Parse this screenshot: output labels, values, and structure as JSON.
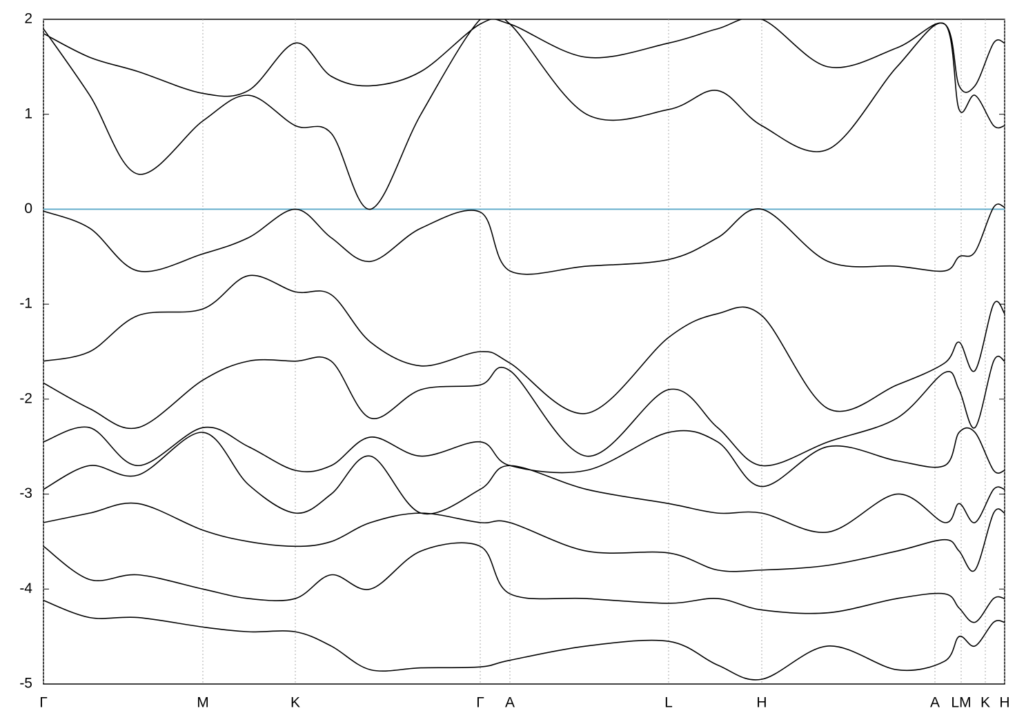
{
  "chart_data": {
    "type": "line",
    "x": [
      0,
      67,
      137,
      231,
      297,
      365,
      417,
      474,
      547,
      633,
      676,
      787,
      906,
      977,
      1041,
      1137,
      1237,
      1306,
      1327,
      1350,
      1377,
      1393
    ],
    "xlim": [
      0,
      1393
    ],
    "xticks": [
      {
        "value": 0,
        "label": "Γ"
      },
      {
        "value": 231,
        "label": "M"
      },
      {
        "value": 365,
        "label": "K"
      },
      {
        "value": 633,
        "label": "Γ"
      },
      {
        "value": 676,
        "label": "A"
      },
      {
        "value": 906,
        "label": "L"
      },
      {
        "value": 1041,
        "label": "H"
      },
      {
        "value": 1292,
        "label": "A"
      },
      {
        "value": 1330,
        "label": "LM"
      },
      {
        "value": 1365,
        "label": "K"
      },
      {
        "value": 1393,
        "label": "H"
      }
    ],
    "ylim": [
      -5,
      2
    ],
    "yticks": [
      -5,
      -4,
      -3,
      -2,
      -1,
      0,
      1,
      2
    ],
    "grid": true,
    "fermi_level": {
      "value": 0,
      "color": "#5aa8c8"
    },
    "series": [
      {
        "color": "#000000",
        "values": [
          1.9,
          1.2,
          0.37,
          0.93,
          1.2,
          0.88,
          0.8,
          0.0,
          1.0,
          2.0,
          1.95,
          1.0,
          1.05,
          1.25,
          0.88,
          0.63,
          1.5,
          1.95,
          1.05,
          1.2,
          0.88,
          0.88
        ]
      },
      {
        "color": "#000000",
        "values": [
          1.85,
          1.6,
          1.45,
          1.22,
          1.25,
          1.75,
          1.4,
          1.3,
          1.45,
          1.95,
          1.95,
          1.6,
          1.75,
          1.9,
          2.0,
          1.5,
          1.7,
          1.95,
          1.3,
          1.3,
          1.75,
          1.75
        ]
      },
      {
        "color": "#000000",
        "values": [
          -0.02,
          -0.2,
          -0.65,
          -0.47,
          -0.3,
          0.0,
          -0.3,
          -0.55,
          -0.2,
          -0.03,
          -0.65,
          -0.6,
          -0.53,
          -0.3,
          0.0,
          -0.55,
          -0.6,
          -0.65,
          -0.5,
          -0.45,
          0.02,
          0.02
        ]
      },
      {
        "color": "#000000",
        "values": [
          -1.6,
          -1.5,
          -1.12,
          -1.05,
          -0.7,
          -0.87,
          -0.9,
          -1.4,
          -1.65,
          -1.5,
          -1.62,
          -2.15,
          -1.35,
          -1.1,
          -1.12,
          -2.1,
          -1.85,
          -1.62,
          -1.4,
          -1.7,
          -1.0,
          -1.1
        ]
      },
      {
        "color": "#000000",
        "values": [
          -1.83,
          -2.1,
          -2.3,
          -1.8,
          -1.6,
          -1.6,
          -1.6,
          -2.2,
          -1.9,
          -1.85,
          -1.7,
          -2.6,
          -1.9,
          -2.3,
          -2.7,
          -2.45,
          -2.2,
          -1.72,
          -1.9,
          -2.3,
          -1.6,
          -1.6
        ]
      },
      {
        "color": "#000000",
        "values": [
          -2.45,
          -2.3,
          -2.7,
          -2.3,
          -2.5,
          -2.75,
          -2.7,
          -2.4,
          -2.6,
          -2.45,
          -2.7,
          -2.75,
          -2.35,
          -2.45,
          -2.92,
          -2.5,
          -2.65,
          -2.7,
          -2.35,
          -2.35,
          -2.75,
          -2.75
        ]
      },
      {
        "color": "#000000",
        "values": [
          -2.95,
          -2.7,
          -2.8,
          -2.35,
          -2.9,
          -3.2,
          -3.0,
          -2.6,
          -3.2,
          -2.95,
          -2.7,
          -2.95,
          -3.1,
          -3.2,
          -3.2,
          -3.4,
          -3.0,
          -3.3,
          -3.1,
          -3.3,
          -2.95,
          -2.95
        ]
      },
      {
        "color": "#000000",
        "values": [
          -3.3,
          -3.2,
          -3.1,
          -3.38,
          -3.5,
          -3.55,
          -3.5,
          -3.3,
          -3.2,
          -3.3,
          -3.3,
          -3.6,
          -3.62,
          -3.8,
          -3.8,
          -3.75,
          -3.6,
          -3.48,
          -3.6,
          -3.8,
          -3.2,
          -3.2
        ]
      },
      {
        "color": "#000000",
        "values": [
          -3.55,
          -3.9,
          -3.85,
          -4.0,
          -4.1,
          -4.1,
          -3.85,
          -4.0,
          -3.6,
          -3.55,
          -4.05,
          -4.1,
          -4.15,
          -4.1,
          -4.22,
          -4.25,
          -4.1,
          -4.05,
          -4.2,
          -4.35,
          -4.1,
          -4.1
        ]
      },
      {
        "color": "#000000",
        "values": [
          -4.12,
          -4.3,
          -4.3,
          -4.4,
          -4.45,
          -4.45,
          -4.6,
          -4.85,
          -4.83,
          -4.82,
          -4.75,
          -4.6,
          -4.55,
          -4.8,
          -4.95,
          -4.6,
          -4.85,
          -4.76,
          -4.5,
          -4.6,
          -4.35,
          -4.35
        ]
      }
    ]
  }
}
